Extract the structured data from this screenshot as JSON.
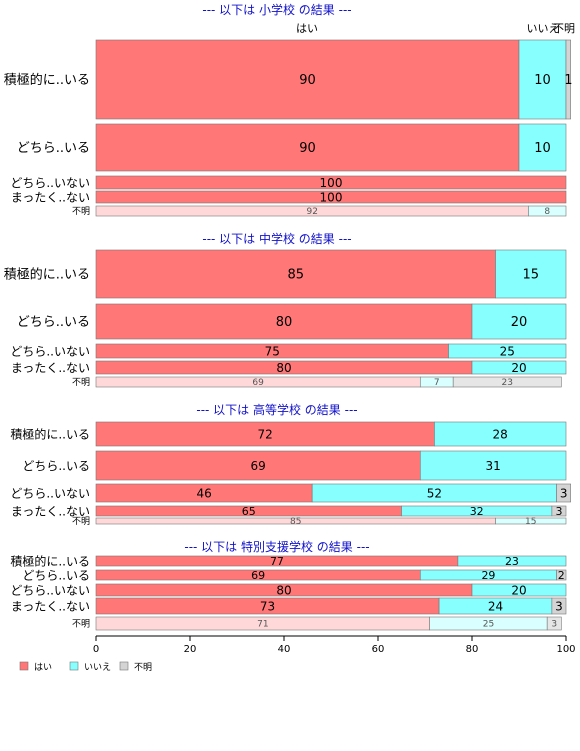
{
  "chart_data": {
    "type": "bar",
    "orientation": "horizontal",
    "stacked": true,
    "xlim": [
      0,
      100
    ],
    "xticks": [
      0,
      20,
      40,
      60,
      80,
      100
    ],
    "grid": false,
    "legend_position": "bottom-left",
    "series": [
      {
        "name": "はい",
        "color": "#ff7777"
      },
      {
        "name": "いいえ",
        "color": "#88ffff"
      },
      {
        "name": "不明",
        "color": "#d4d4d4"
      }
    ],
    "top_labels": [
      "はい",
      "いいえ",
      "不明"
    ],
    "panels": [
      {
        "title": "--- 以下は 小学校 の結果 ---",
        "rows": [
          {
            "label": "積極的に..いる",
            "values": [
              90,
              10,
              1
            ],
            "labels": [
              "90",
              "10",
              "1"
            ]
          },
          {
            "label": "どちら..いる",
            "values": [
              90,
              10,
              0
            ],
            "labels": [
              "90",
              "10",
              ""
            ]
          },
          {
            "label": "どちら..いない",
            "values": [
              100,
              0,
              0
            ],
            "labels": [
              "100",
              "",
              ""
            ]
          },
          {
            "label": "まったく..ない",
            "values": [
              100,
              0,
              0
            ],
            "labels": [
              "100",
              "",
              ""
            ]
          },
          {
            "label": "不明",
            "values": [
              92,
              8,
              0
            ],
            "labels": [
              "92",
              "8",
              ""
            ],
            "muted": true
          }
        ]
      },
      {
        "title": "--- 以下は 中学校 の結果 ---",
        "rows": [
          {
            "label": "積極的に..いる",
            "values": [
              85,
              15,
              0
            ],
            "labels": [
              "85",
              "15",
              ""
            ]
          },
          {
            "label": "どちら..いる",
            "values": [
              80,
              20,
              0
            ],
            "labels": [
              "80",
              "20",
              ""
            ]
          },
          {
            "label": "どちら..いない",
            "values": [
              75,
              25,
              0
            ],
            "labels": [
              "75",
              "25",
              ""
            ]
          },
          {
            "label": "まったく..ない",
            "values": [
              80,
              20,
              0
            ],
            "labels": [
              "80",
              "20",
              ""
            ]
          },
          {
            "label": "不明",
            "values": [
              69,
              7,
              23
            ],
            "labels": [
              "69",
              "7",
              "23"
            ],
            "muted": true
          }
        ]
      },
      {
        "title": "--- 以下は 高等学校 の結果 ---",
        "rows": [
          {
            "label": "積極的に..いる",
            "values": [
              72,
              28,
              0
            ],
            "labels": [
              "72",
              "28",
              ""
            ]
          },
          {
            "label": "どちら..いる",
            "values": [
              69,
              31,
              0
            ],
            "labels": [
              "69",
              "31",
              ""
            ]
          },
          {
            "label": "どちら..いない",
            "values": [
              46,
              52,
              3
            ],
            "labels": [
              "46",
              "52",
              "3"
            ]
          },
          {
            "label": "まったく..ない",
            "values": [
              65,
              32,
              3
            ],
            "labels": [
              "65",
              "32",
              "3"
            ]
          },
          {
            "label": "不明",
            "values": [
              85,
              15,
              0
            ],
            "labels": [
              "85",
              "15",
              ""
            ],
            "muted": true
          }
        ]
      },
      {
        "title": "--- 以下は 特別支援学校 の結果 ---",
        "rows": [
          {
            "label": "積極的に..いる",
            "values": [
              77,
              23,
              0
            ],
            "labels": [
              "77",
              "23",
              ""
            ]
          },
          {
            "label": "どちら..いる",
            "values": [
              69,
              29,
              2
            ],
            "labels": [
              "69",
              "29",
              "2"
            ]
          },
          {
            "label": "どちら..いない",
            "values": [
              80,
              20,
              0
            ],
            "labels": [
              "80",
              "20",
              ""
            ]
          },
          {
            "label": "まったく..ない",
            "values": [
              73,
              24,
              3
            ],
            "labels": [
              "73",
              "24",
              "3"
            ]
          },
          {
            "label": "不明",
            "values": [
              71,
              25,
              3
            ],
            "labels": [
              "71",
              "25",
              "3"
            ],
            "muted": true
          }
        ]
      }
    ]
  }
}
